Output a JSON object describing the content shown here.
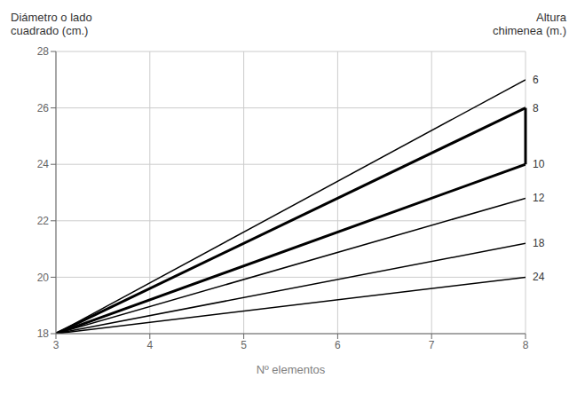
{
  "chart_data": {
    "type": "line",
    "ylabel": "Diámetro o lado\ncuadrado (cm.)",
    "y2label": "Altura\nchimenea (m.)",
    "xlabel": "Nº elementos",
    "x": [
      3,
      8
    ],
    "series": [
      {
        "name": "6",
        "values": [
          18.0,
          27.0
        ],
        "line_style": "solid"
      },
      {
        "name": "8",
        "values": [
          18.0,
          26.0
        ],
        "line_style": "bold"
      },
      {
        "name": "10",
        "values": [
          18.0,
          24.0
        ],
        "line_style": "bold"
      },
      {
        "name": "12",
        "values": [
          18.0,
          22.8
        ],
        "line_style": "solid"
      },
      {
        "name": "18",
        "values": [
          18.0,
          21.2
        ],
        "line_style": "solid"
      },
      {
        "name": "24",
        "values": [
          18.0,
          20.0
        ],
        "line_style": "solid"
      }
    ],
    "bracket": {
      "x": 8,
      "values": [
        24.0,
        26.0
      ],
      "line_style": "bold"
    },
    "color": "#000000",
    "xlim": [
      3,
      8
    ],
    "ylim": [
      18,
      28
    ],
    "xticks": [
      3,
      4,
      5,
      6,
      7,
      8
    ],
    "yticks": [
      18,
      20,
      22,
      24,
      26,
      28
    ],
    "grid": true
  }
}
